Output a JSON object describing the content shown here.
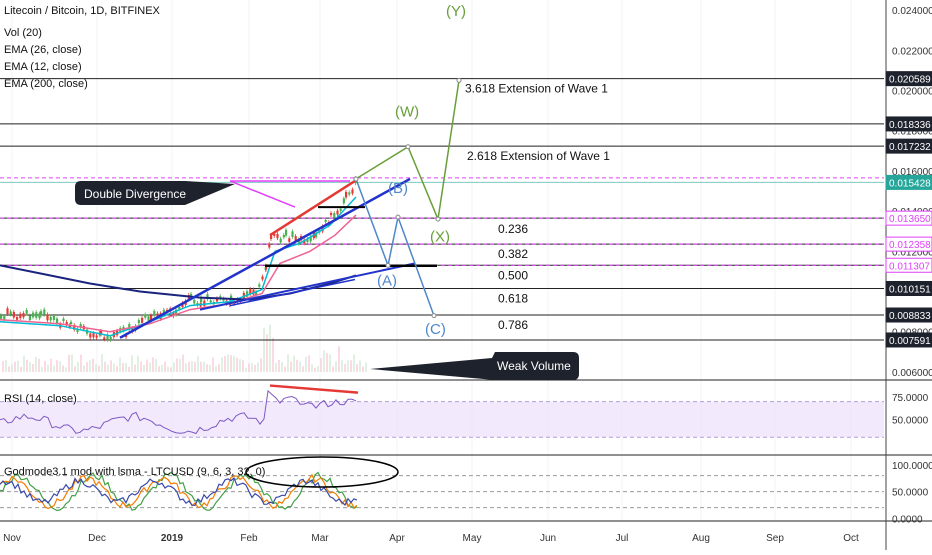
{
  "chart_data": {
    "type": "line",
    "title": "Litecoin / Bitcoin, 1D, BITFINEX",
    "symbol": "LTCUSD",
    "main_pane": {
      "indicators": [
        "Vol (20)",
        "EMA (26, close)",
        "EMA (12, close)",
        "EMA (200, close)"
      ],
      "ylim": [
        0.0056,
        0.0245
      ],
      "yticks": [
        "0.024000",
        "0.022000",
        "0.020000",
        "0.018000",
        "0.016000",
        "0.014000",
        "0.012000",
        "0.010000",
        "0.008000",
        "0.006000"
      ],
      "price_tags": [
        {
          "label": "0.020589",
          "value": 0.020589,
          "style": "dark"
        },
        {
          "label": "0.018336",
          "value": 0.018336,
          "style": "dark"
        },
        {
          "label": "0.017232",
          "value": 0.017232,
          "style": "dark"
        },
        {
          "label": "0.015428",
          "value": 0.015428,
          "style": "teal"
        },
        {
          "label": "0.013650",
          "value": 0.01365,
          "style": "magenta"
        },
        {
          "label": "0.012358",
          "value": 0.012358,
          "style": "magenta"
        },
        {
          "label": "0.011307",
          "value": 0.011307,
          "style": "magenta"
        },
        {
          "label": "0.010151",
          "value": 0.010151,
          "style": "dark"
        },
        {
          "label": "0.008833",
          "value": 0.008833,
          "style": "dark"
        },
        {
          "label": "0.007591",
          "value": 0.007591,
          "style": "dark"
        }
      ],
      "levels": [
        {
          "value": 0.020589,
          "type": "extension",
          "label": "3.618 Extension of Wave 1"
        },
        {
          "value": 0.018336,
          "type": "extension",
          "label": ""
        },
        {
          "value": 0.017232,
          "type": "extension",
          "label": "2.618 Extension of Wave 1"
        },
        {
          "value": 0.01365,
          "type": "fib",
          "label": "0.236"
        },
        {
          "value": 0.012358,
          "type": "fib",
          "label": "0.382"
        },
        {
          "value": 0.011307,
          "type": "fib",
          "label": "0.500"
        },
        {
          "value": 0.010151,
          "type": "fib",
          "label": "0.618"
        },
        {
          "value": 0.008833,
          "type": "fib",
          "label": "0.786"
        },
        {
          "value": 0.007591,
          "type": "fib",
          "label": ""
        }
      ],
      "wave_labels": [
        "(Y)",
        "(W)",
        "(X)",
        "(B)",
        "(A)",
        "(C)"
      ],
      "annotations": [
        "Double Divergence",
        "Weak Volume"
      ]
    },
    "rsi_pane": {
      "label": "RSI (14, close)",
      "ylim": [
        10,
        92
      ],
      "yticks": [
        "75.0000",
        "50.0000"
      ],
      "band": [
        30,
        70
      ]
    },
    "godmode_pane": {
      "label": "Godmode3.1 mod with lsma - LTCUSD (9, 6, 3, 32, 0)",
      "ylim": [
        -5,
        115
      ],
      "yticks": [
        "100.0000",
        "50.0000",
        "0.0000"
      ]
    },
    "x_axis": {
      "labels": [
        "Nov",
        "Dec",
        "2019",
        "Feb",
        "Mar",
        "Apr",
        "May",
        "Jun",
        "Jul",
        "Aug",
        "Sep",
        "Oct"
      ]
    }
  }
}
